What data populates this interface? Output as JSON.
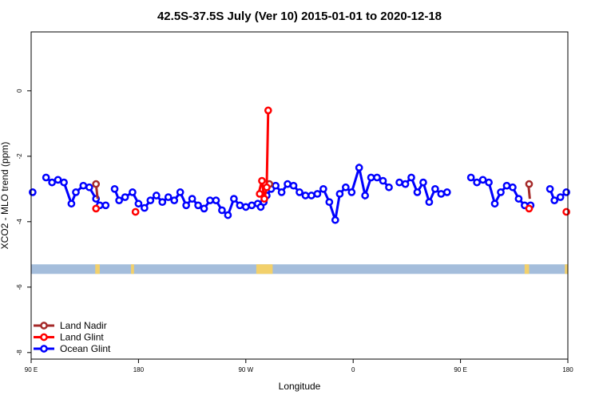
{
  "chart_data": {
    "type": "line",
    "title": "42.5S-37.5S July (Ver 10)   2015-01-01 to 2020-12-18",
    "xlabel": "Longitude",
    "ylabel": "XCO2 - MLO trend (ppm)",
    "xlim": [
      90,
      450
    ],
    "ylim": [
      -8.2,
      1.8
    ],
    "xticks": [
      {
        "value": 90,
        "label": "90 E"
      },
      {
        "value": 162,
        "label": "180"
      },
      {
        "value": 234,
        "label": "90 W"
      },
      {
        "value": 306,
        "label": "0"
      },
      {
        "value": 378,
        "label": "90 E"
      },
      {
        "value": 450,
        "label": "180"
      }
    ],
    "yticks": [
      0,
      -2,
      -4,
      -6,
      -8
    ],
    "grid": false,
    "legend_position": "bottom-left",
    "land_strip": {
      "y": -5.45,
      "ocean_color": "#a4bddb",
      "land_color": "#f2d06b",
      "land_ranges": [
        [
          133,
          136
        ],
        [
          157,
          159
        ],
        [
          241,
          252
        ],
        [
          421,
          424
        ],
        [
          448,
          450
        ]
      ]
    },
    "series": [
      {
        "name": "Land Nadir",
        "color": "#a52a2a",
        "points": [
          [
            133.5,
            -2.85
          ],
          [
            249.8,
            -2.85
          ],
          [
            424.0,
            -2.85
          ]
        ],
        "segments": [
          [
            [
              133.5,
              -2.85
            ],
            [
              134.6,
              -3.3
            ]
          ],
          [
            [
              423.5,
              -2.85
            ],
            [
              424.5,
              -3.3
            ]
          ]
        ]
      },
      {
        "name": "Land Glint",
        "color": "#ff0000",
        "points": [
          [
            133.5,
            -3.6
          ],
          [
            160.0,
            -3.7
          ],
          [
            243.3,
            -3.15
          ],
          [
            244.8,
            -2.75
          ],
          [
            246.4,
            -3.3
          ],
          [
            248.0,
            -2.95
          ],
          [
            249.0,
            -0.6
          ],
          [
            424.0,
            -3.6
          ],
          [
            449.0,
            -3.7
          ]
        ],
        "segments": [
          [
            [
              242.5,
              -3.15
            ],
            [
              244.8,
              -2.75
            ],
            [
              246.4,
              -3.3
            ],
            [
              248.0,
              -2.95
            ],
            [
              249.0,
              -0.6
            ]
          ]
        ]
      },
      {
        "name": "Ocean Glint",
        "color": "#0000ff",
        "segments": [
          [
            [
              91.0,
              -3.1
            ]
          ],
          [
            [
              100.0,
              -2.65
            ],
            [
              104.0,
              -2.8
            ],
            [
              108.0,
              -2.72
            ],
            [
              112.0,
              -2.8
            ],
            [
              117.0,
              -3.45
            ],
            [
              120.0,
              -3.1
            ],
            [
              125.0,
              -2.9
            ],
            [
              129.0,
              -2.95
            ],
            [
              133.5,
              -3.3
            ],
            [
              136.0,
              -3.5
            ],
            [
              140.0,
              -3.5
            ]
          ],
          [
            [
              146.0,
              -3.0
            ],
            [
              149.0,
              -3.35
            ],
            [
              153.0,
              -3.25
            ],
            [
              158.0,
              -3.1
            ],
            [
              162.0,
              -3.45
            ],
            [
              166.0,
              -3.58
            ],
            [
              170.0,
              -3.35
            ],
            [
              174.0,
              -3.2
            ],
            [
              178.0,
              -3.4
            ],
            [
              182.0,
              -3.25
            ],
            [
              186.0,
              -3.35
            ],
            [
              190.0,
              -3.1
            ],
            [
              194.0,
              -3.5
            ],
            [
              198.0,
              -3.3
            ],
            [
              202.0,
              -3.5
            ],
            [
              206.0,
              -3.6
            ],
            [
              210.0,
              -3.35
            ],
            [
              214.0,
              -3.35
            ],
            [
              218.0,
              -3.65
            ],
            [
              222.0,
              -3.8
            ],
            [
              226.0,
              -3.3
            ],
            [
              230.0,
              -3.5
            ],
            [
              234.0,
              -3.55
            ],
            [
              238.0,
              -3.5
            ],
            [
              242.0,
              -3.45
            ],
            [
              244.0,
              -3.55
            ],
            [
              246.0,
              -3.4
            ],
            [
              248.0,
              -3.2
            ],
            [
              251.0,
              -3.0
            ],
            [
              254.0,
              -2.9
            ],
            [
              258.0,
              -3.1
            ],
            [
              262.0,
              -2.85
            ],
            [
              266.0,
              -2.9
            ],
            [
              270.0,
              -3.1
            ],
            [
              274.0,
              -3.2
            ],
            [
              278.0,
              -3.2
            ],
            [
              282.0,
              -3.15
            ],
            [
              286.0,
              -3.0
            ],
            [
              290.0,
              -3.4
            ],
            [
              294.0,
              -3.95
            ],
            [
              297.0,
              -3.15
            ],
            [
              301.0,
              -2.95
            ],
            [
              305.0,
              -3.1
            ],
            [
              310.0,
              -2.35
            ],
            [
              314.0,
              -3.2
            ],
            [
              318.0,
              -2.65
            ],
            [
              322.0,
              -2.65
            ],
            [
              326.0,
              -2.75
            ],
            [
              330.0,
              -2.95
            ]
          ],
          [
            [
              337.0,
              -2.8
            ],
            [
              341.0,
              -2.85
            ],
            [
              345.0,
              -2.65
            ],
            [
              349.0,
              -3.1
            ],
            [
              353.0,
              -2.8
            ],
            [
              357.0,
              -3.4
            ],
            [
              361.0,
              -3.0
            ],
            [
              365.0,
              -3.15
            ],
            [
              369.0,
              -3.1
            ]
          ],
          [
            [
              385.0,
              -2.65
            ],
            [
              389.0,
              -2.8
            ],
            [
              393.0,
              -2.72
            ],
            [
              397.0,
              -2.8
            ],
            [
              401.0,
              -3.45
            ],
            [
              405.0,
              -3.1
            ],
            [
              409.0,
              -2.9
            ],
            [
              413.0,
              -2.95
            ],
            [
              417.0,
              -3.3
            ],
            [
              421.0,
              -3.5
            ],
            [
              425.0,
              -3.5
            ]
          ],
          [
            [
              438.0,
              -3.0
            ],
            [
              441.0,
              -3.35
            ],
            [
              445.0,
              -3.25
            ],
            [
              449.0,
              -3.1
            ]
          ]
        ]
      }
    ]
  }
}
